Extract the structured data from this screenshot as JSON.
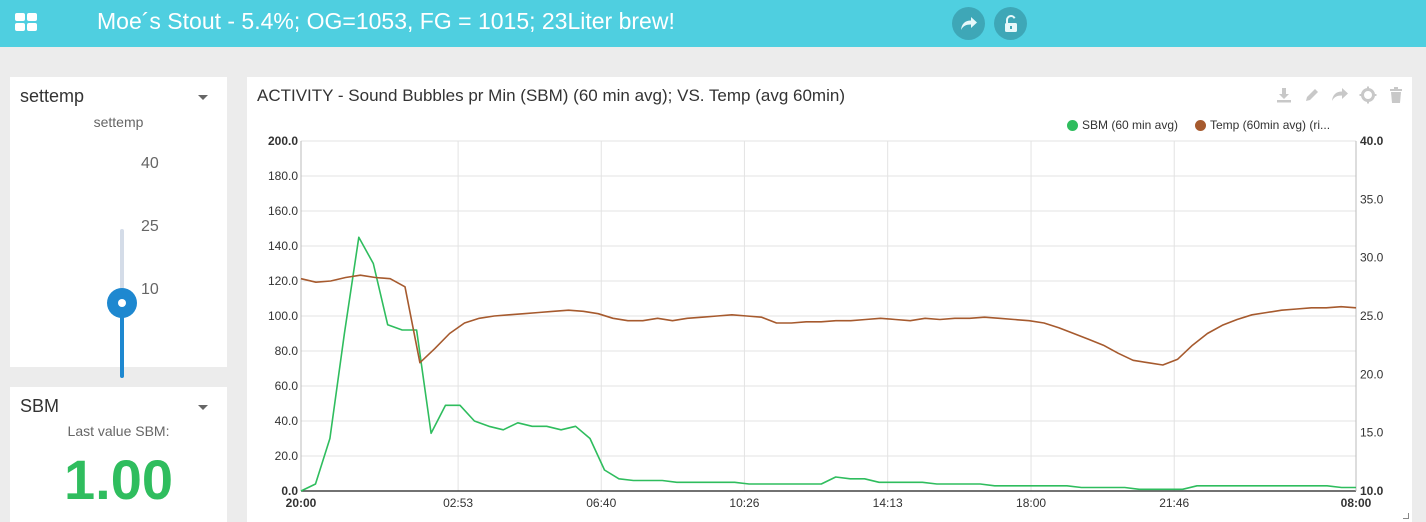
{
  "header": {
    "title": "Moe´s Stout - 5.4%; OG=1053, FG = 1015; 23Liter brew!",
    "menu_icon": "grid-menu-icon",
    "share_icon": "share-icon",
    "lock_icon": "unlock-icon",
    "color": "#4fcfe0"
  },
  "settemp": {
    "title": "settemp",
    "caption": "settemp",
    "labels": [
      "40",
      "25",
      "10"
    ],
    "value": 25,
    "min": 10,
    "max": 40,
    "accent": "#1e88d0"
  },
  "sbm": {
    "title": "SBM",
    "caption": "Last value SBM:",
    "value": "1.00",
    "color": "#2fbd5e"
  },
  "chart": {
    "title": "ACTIVITY - Sound Bubbles pr Min (SBM) (60 min avg); VS. Temp (avg 60min)",
    "toolbar": [
      "download-icon",
      "edit-icon",
      "share-icon",
      "settings-icon",
      "trash-icon"
    ]
  },
  "chart_data": {
    "type": "line",
    "title": "ACTIVITY - Sound Bubbles pr Min (SBM) (60 min avg); VS. Temp (avg 60min)",
    "x_ticks": [
      "20:00",
      "02:53",
      "06:40",
      "10:26",
      "14:13",
      "18:00",
      "21:46",
      "08:00"
    ],
    "y_left_ticks": [
      "0.0",
      "20.0",
      "40.0",
      "60.0",
      "80.0",
      "100.0",
      "120.0",
      "140.0",
      "160.0",
      "180.0",
      "200.0"
    ],
    "y_right_ticks": [
      "10.0",
      "15.0",
      "20.0",
      "25.0",
      "30.0",
      "35.0",
      "40.0"
    ],
    "ylim_left": [
      0,
      200
    ],
    "ylim_right": [
      10,
      40
    ],
    "grid": true,
    "legend_position": "top-right",
    "series": [
      {
        "name": "SBM (60 min avg)",
        "axis": "left",
        "color": "#2fbd5e",
        "values": [
          0,
          4,
          30,
          90,
          145,
          130,
          95,
          92,
          92,
          33,
          49,
          49,
          40,
          37,
          35,
          39,
          37,
          37,
          35,
          37,
          30,
          12,
          7,
          6,
          6,
          6,
          5,
          5,
          5,
          5,
          5,
          4,
          4,
          4,
          4,
          4,
          4,
          8,
          7,
          7,
          5,
          5,
          5,
          5,
          4,
          4,
          4,
          4,
          3,
          3,
          3,
          3,
          3,
          3,
          2,
          2,
          2,
          2,
          1,
          1,
          1,
          1,
          3,
          3,
          3,
          3,
          3,
          3,
          3,
          3,
          3,
          3,
          2,
          2
        ]
      },
      {
        "name": "Temp (60min avg) (ri...",
        "axis": "right",
        "color": "#a65a2e",
        "values": [
          28.2,
          27.9,
          28.0,
          28.3,
          28.5,
          28.3,
          28.2,
          27.5,
          21.0,
          22.2,
          23.5,
          24.4,
          24.8,
          25.0,
          25.1,
          25.2,
          25.3,
          25.4,
          25.5,
          25.4,
          25.2,
          24.8,
          24.6,
          24.6,
          24.8,
          24.6,
          24.8,
          24.9,
          25.0,
          25.1,
          25.0,
          24.9,
          24.4,
          24.4,
          24.5,
          24.5,
          24.6,
          24.6,
          24.7,
          24.8,
          24.7,
          24.6,
          24.8,
          24.7,
          24.8,
          24.8,
          24.9,
          24.8,
          24.7,
          24.6,
          24.4,
          24.0,
          23.5,
          23.0,
          22.5,
          21.8,
          21.2,
          21.0,
          20.8,
          21.3,
          22.5,
          23.5,
          24.2,
          24.7,
          25.1,
          25.3,
          25.5,
          25.6,
          25.7,
          25.7,
          25.8,
          25.7
        ]
      }
    ]
  }
}
